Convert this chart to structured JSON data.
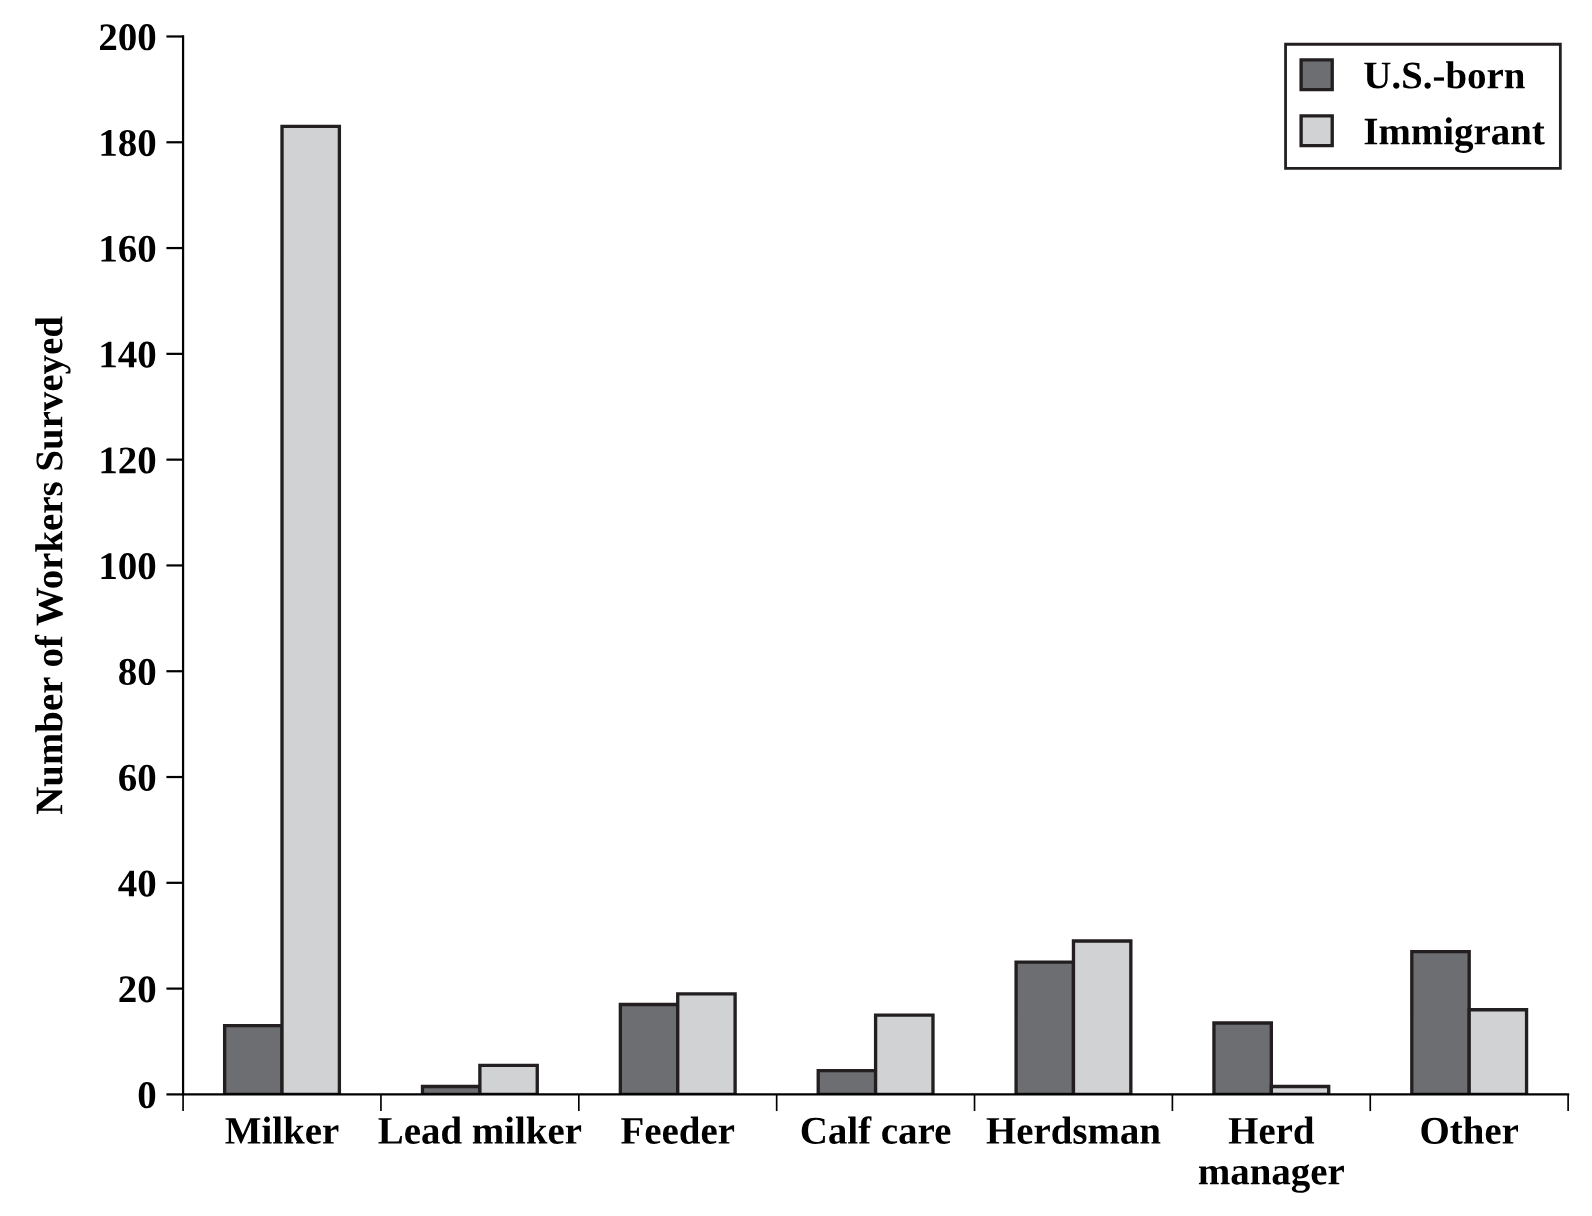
{
  "chart_data": {
    "type": "bar",
    "ylabel": "Number of Workers Surveyed",
    "categories": [
      "Milker",
      "Lead milker",
      "Feeder",
      "Calf care",
      "Herdsman",
      "Herd\nmanager",
      "Other"
    ],
    "series": [
      {
        "name": "U.S.-born",
        "color": "#6d6e71",
        "values": [
          13,
          1.5,
          17,
          4.5,
          25,
          13.5,
          27
        ]
      },
      {
        "name": "Immigrant",
        "color": "#d1d2d4",
        "values": [
          183,
          5.5,
          19,
          15,
          29,
          1.5,
          16
        ]
      }
    ],
    "ylim": [
      0,
      200
    ],
    "yticks": [
      0,
      20,
      40,
      60,
      80,
      100,
      120,
      140,
      160,
      180,
      200
    ],
    "grid": false,
    "legend": "top right"
  }
}
